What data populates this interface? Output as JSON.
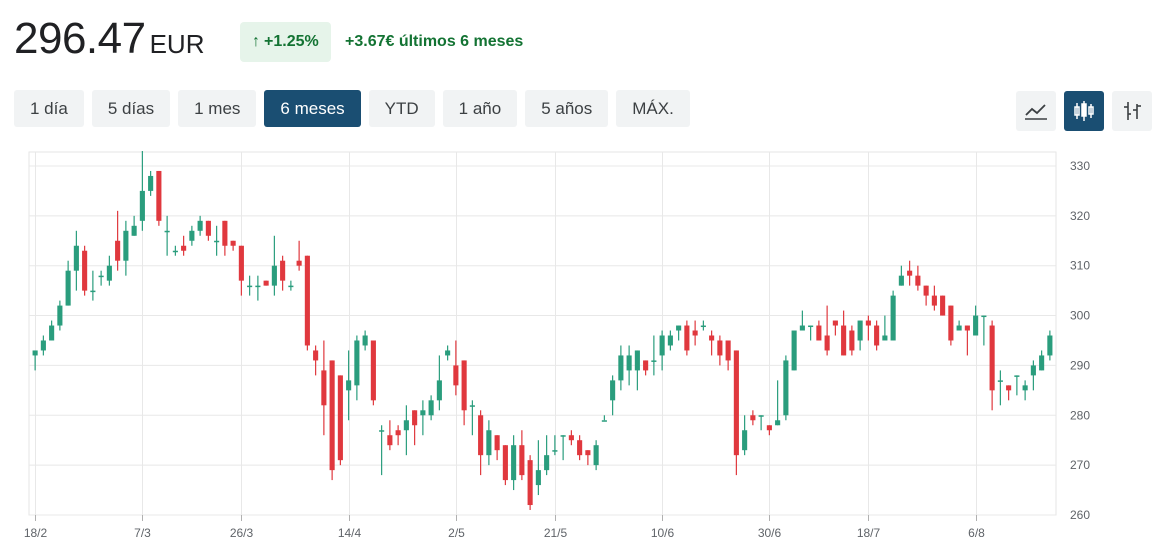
{
  "quote": {
    "price": "296.47",
    "currency": "EUR",
    "change_pct": "+1.25%",
    "period_change": "+3.67€ últimos 6 meses"
  },
  "ranges": [
    {
      "label": "1 día"
    },
    {
      "label": "5 días"
    },
    {
      "label": "1 mes"
    },
    {
      "label": "6 meses"
    },
    {
      "label": "YTD"
    },
    {
      "label": "1 año"
    },
    {
      "label": "5 años"
    },
    {
      "label": "MÁX."
    }
  ],
  "active_range": "6 meses",
  "tools": {
    "line": "line-chart-icon",
    "candle": "candlestick-icon",
    "ohlc": "ohlc-icon",
    "active": "candlestick-icon"
  },
  "colors": {
    "up": "#2a9d7d",
    "down": "#e0383e",
    "accent": "#1a4e72",
    "positive_text": "#137333"
  },
  "chart_data": {
    "type": "candlestick",
    "ylim": [
      260,
      332
    ],
    "yticks": [
      260,
      270,
      280,
      290,
      300,
      310,
      320,
      330
    ],
    "x_tick_labels": [
      "18/2",
      "7/3",
      "26/3",
      "14/4",
      "2/5",
      "21/5",
      "10/6",
      "30/6",
      "18/7",
      "6/8"
    ],
    "candles": [
      [
        292,
        293,
        291,
        289
      ],
      [
        293,
        295,
        296,
        292
      ],
      [
        295,
        298,
        299,
        295
      ],
      [
        298,
        302,
        303,
        297
      ],
      [
        302,
        309,
        311,
        302
      ],
      [
        309,
        314,
        317,
        305
      ],
      [
        313,
        305,
        314,
        304
      ],
      [
        305,
        305,
        309,
        303
      ],
      [
        308,
        308,
        309,
        306
      ],
      [
        307,
        310,
        312,
        306
      ],
      [
        315,
        311,
        321,
        309
      ],
      [
        311,
        317,
        319,
        308
      ],
      [
        316,
        318,
        320,
        316
      ],
      [
        319,
        325,
        333,
        317
      ],
      [
        325,
        328,
        329,
        324
      ],
      [
        329,
        319,
        329,
        318
      ],
      [
        317,
        317,
        320,
        312
      ],
      [
        313,
        313,
        314,
        312
      ],
      [
        314,
        313,
        316,
        312
      ],
      [
        315,
        317,
        318,
        314
      ],
      [
        317,
        319,
        320,
        316
      ],
      [
        319,
        316,
        318,
        315
      ],
      [
        315,
        315,
        318,
        312
      ],
      [
        319,
        314,
        318,
        312
      ],
      [
        315,
        314,
        315,
        313
      ],
      [
        314,
        307,
        314,
        304
      ],
      [
        306,
        306,
        308,
        304
      ],
      [
        306,
        306,
        308,
        303
      ],
      [
        307,
        306,
        306,
        306
      ],
      [
        306,
        310,
        316,
        304
      ],
      [
        311,
        307,
        312,
        305
      ],
      [
        306,
        306,
        307,
        305
      ],
      [
        311,
        310,
        315,
        309
      ],
      [
        312,
        294,
        312,
        293
      ],
      [
        293,
        291,
        294,
        288
      ],
      [
        289,
        282,
        295,
        276
      ],
      [
        291,
        269,
        291,
        267
      ],
      [
        288,
        271,
        288,
        270
      ],
      [
        285,
        287,
        293,
        279
      ],
      [
        286,
        295,
        296,
        283
      ],
      [
        294,
        296,
        297,
        293
      ],
      [
        295,
        283,
        295,
        282
      ],
      [
        277,
        277,
        278,
        268
      ],
      [
        276,
        274,
        279,
        273
      ],
      [
        277,
        276,
        278,
        274
      ],
      [
        277,
        279,
        282,
        272
      ],
      [
        281,
        278,
        281,
        274
      ],
      [
        280,
        281,
        283,
        276
      ],
      [
        280,
        283,
        284,
        279
      ],
      [
        283,
        287,
        292,
        281
      ],
      [
        292,
        293,
        294,
        291
      ],
      [
        290,
        286,
        295,
        284
      ],
      [
        291,
        281,
        291,
        278
      ],
      [
        282,
        282,
        283,
        276
      ],
      [
        280,
        272,
        281,
        268
      ],
      [
        272,
        277,
        279,
        270
      ],
      [
        276,
        273,
        275,
        271
      ],
      [
        274,
        267,
        274,
        266
      ],
      [
        267,
        274,
        276,
        265
      ],
      [
        274,
        268,
        277,
        267
      ],
      [
        271,
        262,
        272,
        261
      ],
      [
        266,
        269,
        275,
        264
      ],
      [
        269,
        272,
        276,
        268
      ],
      [
        273,
        273,
        276,
        272
      ],
      [
        276,
        276,
        276,
        271
      ],
      [
        276,
        275,
        277,
        274
      ],
      [
        275,
        272,
        276,
        271
      ],
      [
        273,
        272,
        272,
        270
      ],
      [
        270,
        274,
        275,
        269
      ],
      [
        279,
        279,
        280,
        279
      ],
      [
        283,
        287,
        288,
        280
      ],
      [
        287,
        292,
        294,
        285
      ],
      [
        289,
        292,
        294,
        286
      ],
      [
        289,
        293,
        293,
        285
      ],
      [
        291,
        289,
        290,
        288
      ],
      [
        291,
        291,
        296,
        288
      ],
      [
        292,
        296,
        297,
        289
      ],
      [
        294,
        296,
        297,
        293
      ],
      [
        297,
        298,
        298,
        295
      ],
      [
        298,
        293,
        299,
        292
      ],
      [
        297,
        296,
        299,
        294
      ],
      [
        298,
        298,
        299,
        297
      ],
      [
        296,
        295,
        297,
        292
      ],
      [
        295,
        292,
        296,
        290
      ],
      [
        295,
        291,
        295,
        289
      ],
      [
        293,
        272,
        293,
        268
      ],
      [
        273,
        277,
        280,
        272
      ],
      [
        280,
        279,
        281,
        278
      ],
      [
        280,
        280,
        280,
        277
      ],
      [
        278,
        277,
        278,
        276
      ],
      [
        278,
        279,
        287,
        279
      ],
      [
        280,
        291,
        292,
        279
      ],
      [
        289,
        297,
        297,
        289
      ],
      [
        297,
        298,
        301,
        297
      ],
      [
        298,
        298,
        298,
        295
      ],
      [
        298,
        295,
        299,
        295
      ],
      [
        296,
        293,
        302,
        292
      ],
      [
        299,
        298,
        299,
        296
      ],
      [
        298,
        292,
        301,
        292
      ],
      [
        297,
        293,
        298,
        292
      ],
      [
        295,
        299,
        299,
        293
      ],
      [
        299,
        298,
        300,
        295
      ],
      [
        298,
        294,
        299,
        293
      ],
      [
        295,
        296,
        300,
        295
      ],
      [
        295,
        304,
        305,
        296
      ],
      [
        306,
        308,
        310,
        306
      ],
      [
        309,
        308,
        311,
        306
      ],
      [
        308,
        306,
        310,
        305
      ],
      [
        306,
        304,
        306,
        302
      ],
      [
        304,
        302,
        306,
        301
      ],
      [
        304,
        300,
        304,
        300
      ],
      [
        302,
        295,
        302,
        294
      ],
      [
        297,
        298,
        299,
        298
      ],
      [
        298,
        297,
        298,
        292
      ],
      [
        296,
        300,
        302,
        296
      ],
      [
        300,
        300,
        300,
        294
      ],
      [
        298,
        285,
        299,
        281
      ],
      [
        287,
        287,
        289,
        282
      ],
      [
        286,
        285,
        286,
        283
      ],
      [
        288,
        288,
        288,
        284
      ],
      [
        285,
        286,
        287,
        283
      ],
      [
        288,
        290,
        291,
        285
      ],
      [
        289,
        292,
        293,
        290
      ],
      [
        292,
        296,
        297,
        291
      ]
    ]
  }
}
